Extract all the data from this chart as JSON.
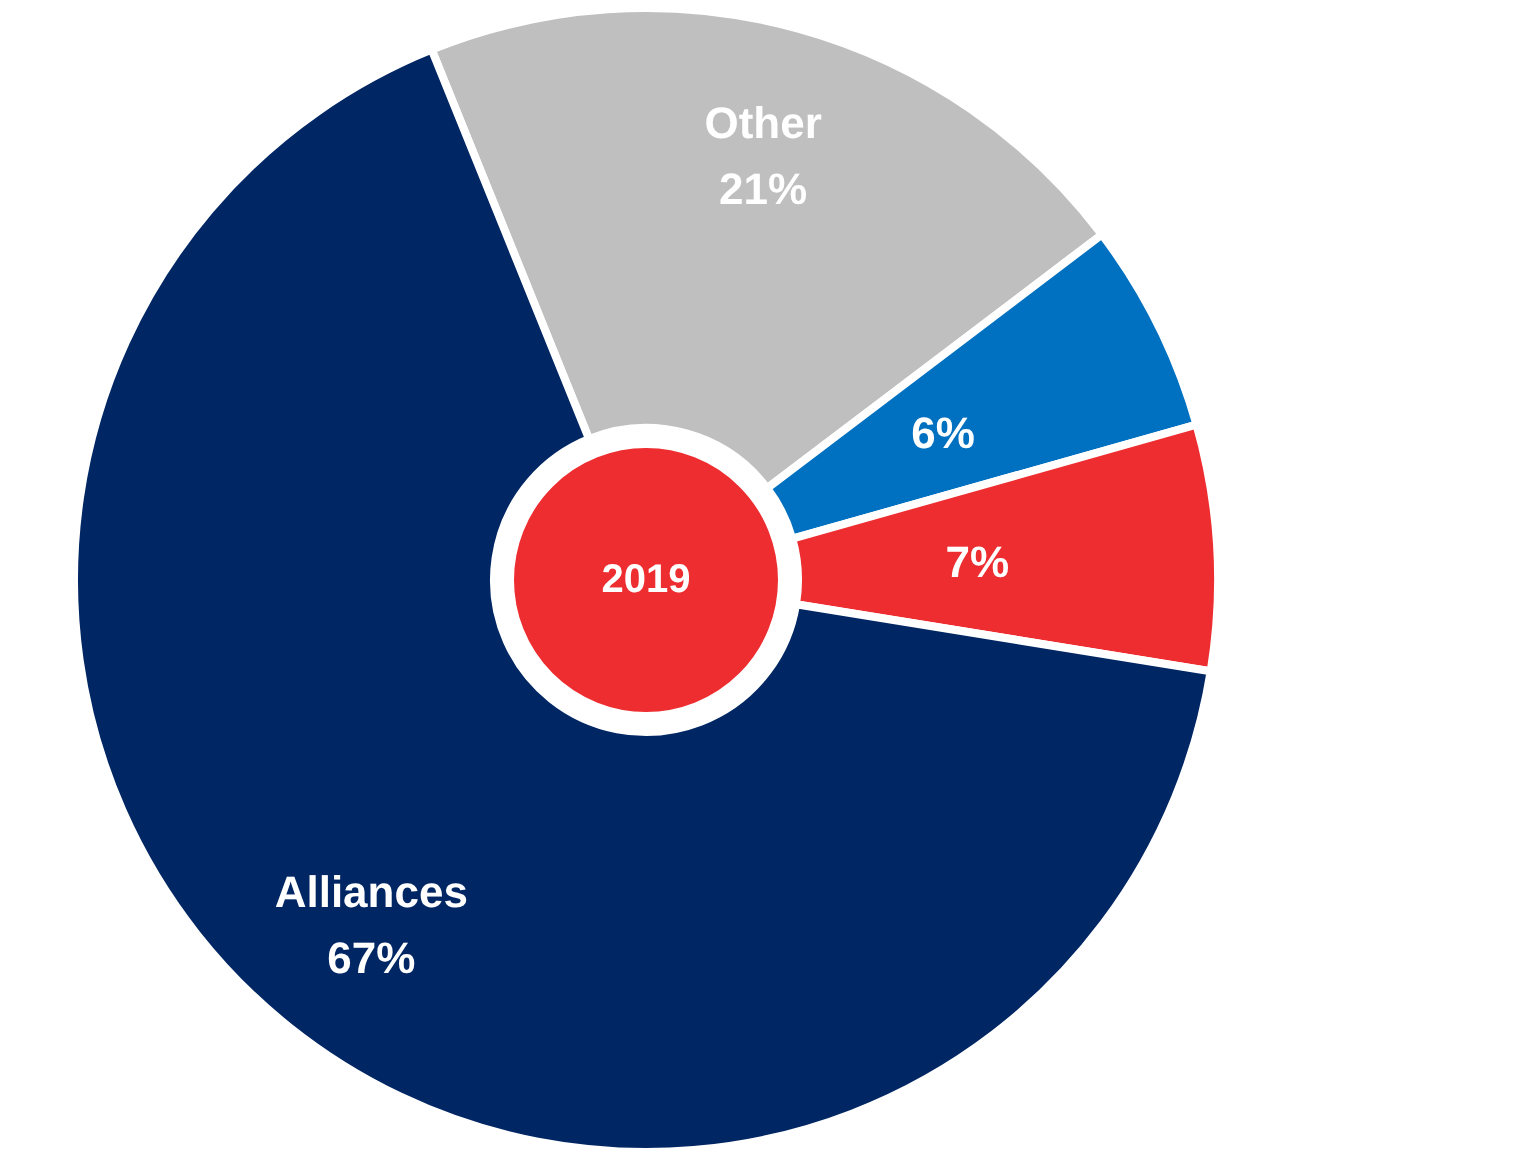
{
  "chart_data": {
    "type": "donut",
    "categories": [
      "Other",
      null,
      null,
      "Alliances"
    ],
    "values": [
      21,
      6,
      7,
      67
    ],
    "colors": [
      "#bfbfbf",
      "#0070c0",
      "#ee2d30",
      "#002663"
    ],
    "value_labels": [
      "21%",
      "6%",
      "7%",
      "67%"
    ],
    "annotations": [
      "2019"
    ]
  }
}
